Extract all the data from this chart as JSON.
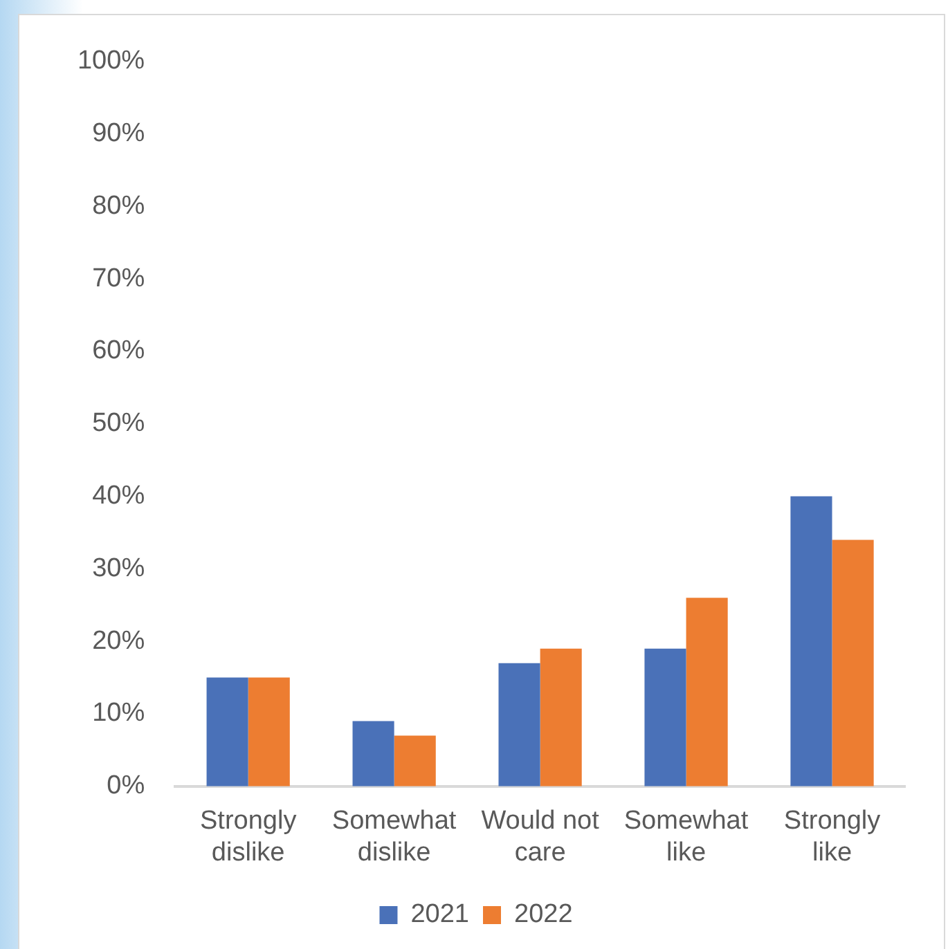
{
  "chart_data": {
    "type": "bar",
    "categories": [
      "Strongly dislike",
      "Somewhat dislike",
      "Would not care",
      "Somewhat like",
      "Strongly like"
    ],
    "series": [
      {
        "name": "2021",
        "color": "#4a71b8",
        "values": [
          15,
          9,
          17,
          19,
          40
        ]
      },
      {
        "name": "2022",
        "color": "#ed7d31",
        "values": [
          15,
          7,
          19,
          26,
          34
        ]
      }
    ],
    "ylim": [
      0,
      100
    ],
    "yticks": [
      {
        "value": 0,
        "label": "0%"
      },
      {
        "value": 10,
        "label": "10%"
      },
      {
        "value": 20,
        "label": "20%"
      },
      {
        "value": 30,
        "label": "30%"
      },
      {
        "value": 40,
        "label": "40%"
      },
      {
        "value": 50,
        "label": "50%"
      },
      {
        "value": 60,
        "label": "60%"
      },
      {
        "value": 70,
        "label": "70%"
      },
      {
        "value": 80,
        "label": "80%"
      },
      {
        "value": 90,
        "label": "90%"
      },
      {
        "value": 100,
        "label": "100%"
      }
    ],
    "grid": false,
    "legend": "bottom"
  }
}
